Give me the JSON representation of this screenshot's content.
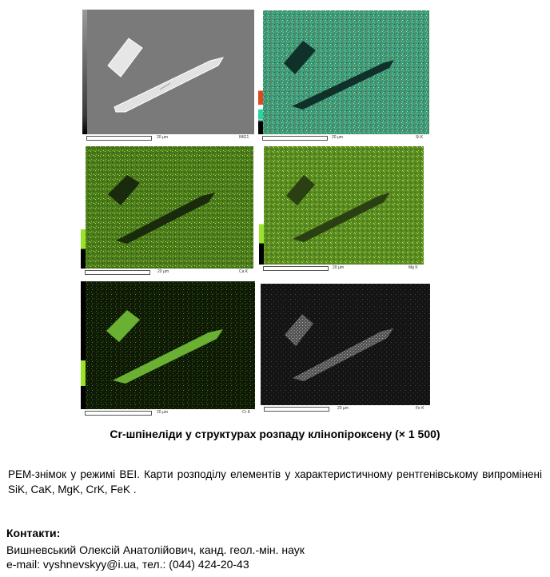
{
  "panels": [
    {
      "id": "img1",
      "label": "IMG1",
      "scale": "20 µm",
      "colorbar": [
        "#888888",
        "#333333",
        "#000000"
      ]
    },
    {
      "id": "si",
      "label": "Si K",
      "scale": "20 µm",
      "colorbar": [
        "#e04a1a",
        "#ffffff",
        "#22d8a0",
        "#000000"
      ]
    },
    {
      "id": "ca",
      "label": "Ca K",
      "scale": "20 µm",
      "colorbar": [
        "#9be22a",
        "#000000"
      ]
    },
    {
      "id": "mg",
      "label": "Mg K",
      "scale": "20 µm",
      "colorbar": [
        "#9be22a",
        "#000000"
      ]
    },
    {
      "id": "cr",
      "label": "Cr K",
      "scale": "20 µm",
      "colorbar": [
        "#9be22a",
        "#000000"
      ]
    },
    {
      "id": "fe",
      "label": "Fe K",
      "scale": "20 µm",
      "colorbar": []
    }
  ],
  "caption": "Cr-шпінеліди у структурах розпаду клінопіроксену (× 1 500)",
  "description": "РЕМ-знімок у режимі BEI. Карти розподілу елементів у характеристичному рентгенівському випромінені  SiK, CaK, MgK, CrK, FeK .",
  "contacts": {
    "heading": "Контакти:",
    "name": "Вишневський Олексій Анатолійович, канд. геол.-мін. наук",
    "email_line": "e-mail: vyshnevskyy@i.ua,  тел.: (044) 424-20-43"
  }
}
